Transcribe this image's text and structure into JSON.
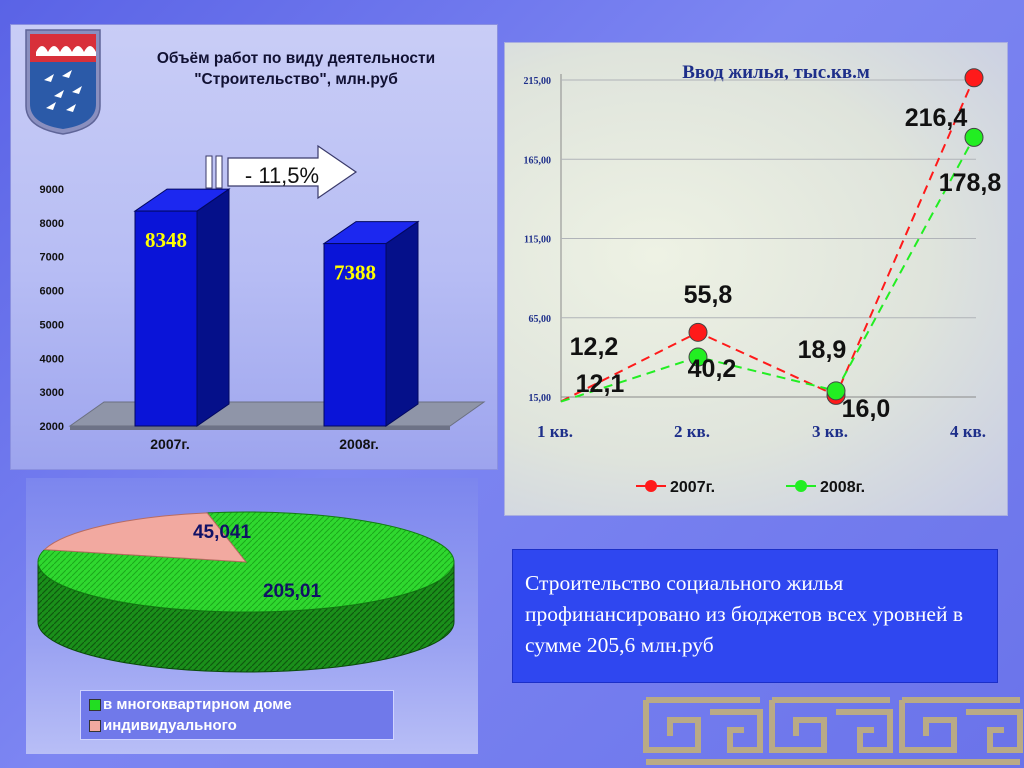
{
  "bar_panel": {
    "title": "Объём работ по виду деятельности \"Строительство\", млн.руб",
    "change_label": "- 11,5%"
  },
  "line_panel": {
    "title": "Ввод жилья, тыс.кв.м"
  },
  "note": {
    "text": "Строительство социального жилья профинансировано из бюджетов всех уровней в сумме 205,6 млн.руб"
  },
  "colors": {
    "bar_front": "#0a14d8",
    "bar_side": "#05108a",
    "bar_top": "#1c28f0",
    "series_2007": "#ff1a1a",
    "series_2008": "#22ee22",
    "pie_green": "#22dd22",
    "pie_pink": "#f2a9a0"
  },
  "icons": [
    "coat-of-arms-icon",
    "arrow-right-icon"
  ],
  "chart_data": [
    {
      "type": "bar",
      "title": "Объём работ по виду деятельности \"Строительство\", млн.руб",
      "categories": [
        "2007г.",
        "2008г."
      ],
      "values": [
        8348,
        7388
      ],
      "data_labels": [
        "8348",
        "7388"
      ],
      "ylim": [
        2000,
        9000
      ],
      "yticks": [
        "2000",
        "3000",
        "4000",
        "5000",
        "6000",
        "7000",
        "8000",
        "9000"
      ],
      "annotation": "- 11,5%"
    },
    {
      "type": "line",
      "title": "Ввод жилья, тыс.кв.м",
      "categories": [
        "1 кв.",
        "2 кв.",
        "3 кв.",
        "4 кв."
      ],
      "ylim": [
        15,
        215
      ],
      "yticks": [
        "15,00",
        "65,00",
        "115,00",
        "165,00",
        "215,00"
      ],
      "legend": "bottom",
      "series": [
        {
          "name": "2007г.",
          "values": [
            12.2,
            55.8,
            16.0,
            216.4
          ],
          "labels": [
            "12,2",
            "55,8",
            "16,0",
            "216,4"
          ]
        },
        {
          "name": "2008г.",
          "values": [
            12.1,
            40.2,
            18.9,
            178.8
          ],
          "labels": [
            "12,1",
            "40,2",
            "18,9",
            "178,8"
          ]
        }
      ]
    },
    {
      "type": "pie",
      "slices": [
        {
          "name": "в многоквартирном доме",
          "value": 205.01,
          "label": "205,01"
        },
        {
          "name": "индивидуального",
          "value": 45.041,
          "label": "45,041"
        }
      ],
      "legend": "bottom"
    }
  ]
}
